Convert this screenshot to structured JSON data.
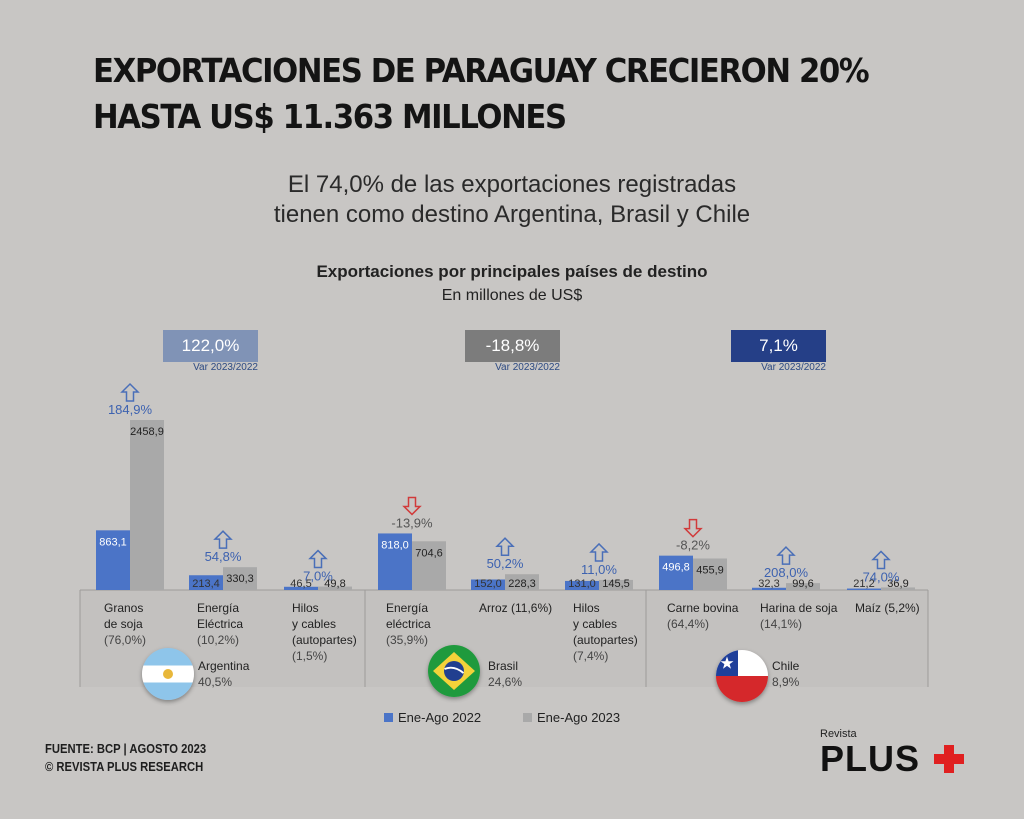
{
  "title_line1": "EXPORTACIONES DE PARAGUAY CRECIERON 20%",
  "title_line2": "HASTA US$ 11.363 MILLONES",
  "subtitle_line1": "El 74,0% de las exportaciones registradas",
  "subtitle_line2": "tienen como destino Argentina, Brasil y Chile",
  "chart_title": "Exportaciones por principales países de destino",
  "chart_subtitle": "En millones de US$",
  "var_label": "Var 2023/2022",
  "countries": [
    {
      "name": "Argentina",
      "share": "40,5%",
      "var": "122,0%",
      "color": "#8093b6"
    },
    {
      "name": "Brasil",
      "share": "24,6%",
      "var": "-18,8%",
      "color": "#7c7c7c"
    },
    {
      "name": "Chile",
      "share": "8,9%",
      "var": "7,1%",
      "color": "#253f87"
    }
  ],
  "legend": {
    "s2022": "Ene-Ago 2022",
    "s2023": "Ene-Ago 2023"
  },
  "colors": {
    "s2022": "#4b74c7",
    "s2023": "#a9a9a9",
    "up": "#4a6fb8",
    "down": "#d13a3a",
    "pct": "#3d62b0"
  },
  "source_line1": "FUENTE: BCP | AGOSTO 2023",
  "source_line2": "© REVISTA PLUS RESEARCH",
  "logo_small": "Revista",
  "logo_big": "PLUS",
  "chart_data": {
    "type": "bar",
    "categories": [
      "Granos de soja",
      "Energía Eléctrica",
      "Hilos y cables (autopartes)",
      "Energía eléctrica",
      "Arroz",
      "Hilos y cables (autopartes)",
      "Carne bovina",
      "Harina de soja",
      "Maíz"
    ],
    "category_labels": [
      [
        "Granos",
        "de soja",
        "(76,0%)"
      ],
      [
        "Energía",
        "Eléctrica",
        "(10,2%)"
      ],
      [
        "Hilos",
        "y cables",
        "(autopartes)",
        "(1,5%)"
      ],
      [
        "Energía",
        "eléctrica",
        "(35,9%)"
      ],
      [
        "Arroz (11,6%)"
      ],
      [
        "Hilos",
        "y cables",
        "(autopartes)",
        "(7,4%)"
      ],
      [
        "Carne bovina",
        "(64,4%)"
      ],
      [
        "Harina de soja",
        "(14,1%)"
      ],
      [
        "Maíz (5,2%)"
      ]
    ],
    "groups": [
      "Argentina",
      "Argentina",
      "Argentina",
      "Brasil",
      "Brasil",
      "Brasil",
      "Chile",
      "Chile",
      "Chile"
    ],
    "series": [
      {
        "name": "Ene-Ago 2022",
        "values": [
          863.1,
          213.4,
          46.5,
          818.0,
          152.0,
          131.0,
          496.8,
          32.3,
          21.2
        ]
      },
      {
        "name": "Ene-Ago 2023",
        "values": [
          2458.9,
          330.3,
          49.8,
          704.6,
          228.3,
          145.5,
          455.9,
          99.6,
          36.9
        ]
      }
    ],
    "value_labels_2022": [
      "863,1",
      "213,4",
      "46,5",
      "818,0",
      "152,0",
      "131,0",
      "496,8",
      "32,3",
      "21,2"
    ],
    "value_labels_2023": [
      "2458,9",
      "330,3",
      "49,8",
      "704,6",
      "228,3",
      "145,5",
      "455,9",
      "99,6",
      "36,9"
    ],
    "variation": [
      "184,9%",
      "54,8%",
      "7,0%",
      "-13,9%",
      "50,2%",
      "11,0%",
      "-8,2%",
      "208,0%",
      "74,0%"
    ],
    "direction": [
      "up",
      "up",
      "up",
      "down",
      "up",
      "up",
      "down",
      "up",
      "up"
    ],
    "ylim": [
      0,
      2458.9
    ]
  }
}
